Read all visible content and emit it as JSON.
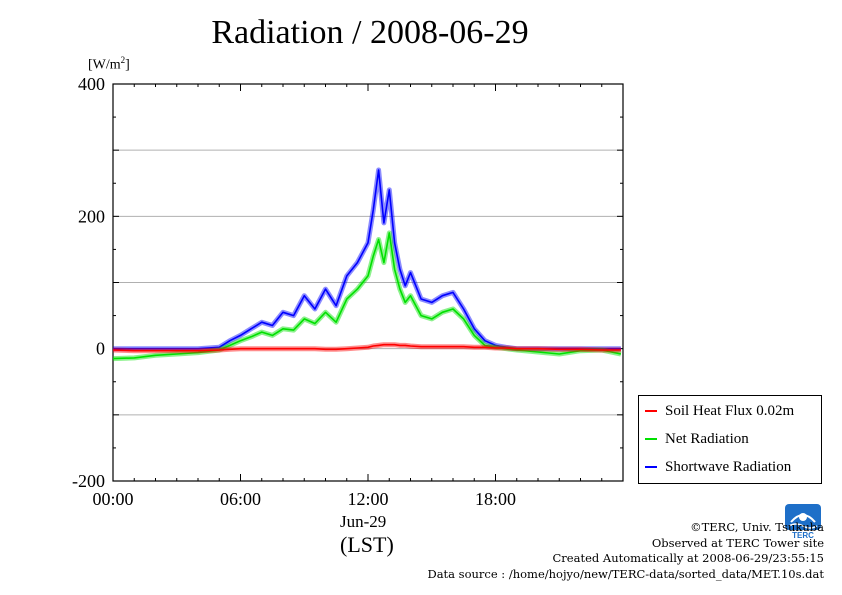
{
  "page": {
    "title": "Radiation / 2008-06-29",
    "unit_label": "[W/m",
    "unit_sup": "2",
    "unit_close": "]",
    "x_date_label": "Jun-29",
    "x_tz_label": "(LST)"
  },
  "legend": {
    "items": [
      {
        "label": "Soil Heat Flux 0.02m",
        "color": "#ff0000"
      },
      {
        "label": "Net Radiation",
        "color": "#00e000"
      },
      {
        "label": "Shortwave Radiation",
        "color": "#0000ff"
      }
    ]
  },
  "credits": {
    "line1": "©TERC, Univ. Tsukuba",
    "line2": "Observed at TERC Tower site",
    "line3": "Created Automatically at 2008-06-29/23:55:15",
    "line4": "Data source : /home/hojyo/new/TERC-data/sorted_data/MET.10s.dat"
  },
  "logo": {
    "text": "TERC",
    "icon": "terc-logo"
  },
  "chart_data": {
    "type": "line",
    "title": "Radiation / 2008-06-29",
    "xlabel": "Jun-29 (LST)",
    "ylabel": "[W/m2]",
    "ylim": [
      -200,
      400
    ],
    "xlim": [
      0,
      24
    ],
    "y_ticks": [
      400,
      200,
      0,
      -200
    ],
    "y_tick_labels": [
      "400",
      "200",
      "0",
      "-200"
    ],
    "x_ticks": [
      0,
      6,
      12,
      18
    ],
    "x_tick_labels": [
      "00:00",
      "06:00",
      "12:00",
      "18:00"
    ],
    "grid": true,
    "legend_position": "right",
    "x": [
      0,
      1,
      2,
      3,
      4,
      5,
      5.5,
      6,
      6.5,
      7,
      7.5,
      8,
      8.5,
      9,
      9.5,
      10,
      10.5,
      11,
      11.5,
      12,
      12.25,
      12.5,
      12.75,
      13,
      13.25,
      13.5,
      13.75,
      14,
      14.5,
      15,
      15.5,
      16,
      16.5,
      17,
      17.5,
      18,
      18.5,
      19,
      20,
      21,
      22,
      23,
      23.9
    ],
    "series": [
      {
        "name": "Soil Heat Flux 0.02m",
        "color": "#ff0000",
        "values": [
          -2,
          -3,
          -3,
          -3,
          -3,
          -2,
          -1,
          0,
          0,
          0,
          0,
          0,
          0,
          0,
          0,
          -1,
          -1,
          0,
          1,
          2,
          4,
          5,
          6,
          6,
          6,
          5,
          5,
          4,
          3,
          3,
          3,
          3,
          3,
          2,
          2,
          1,
          1,
          0,
          0,
          -1,
          -1,
          -2,
          -2
        ]
      },
      {
        "name": "Net Radiation",
        "color": "#00e000",
        "values": [
          -15,
          -14,
          -10,
          -8,
          -6,
          -2,
          5,
          12,
          18,
          25,
          20,
          30,
          28,
          45,
          38,
          55,
          40,
          75,
          90,
          110,
          140,
          165,
          130,
          175,
          120,
          90,
          70,
          80,
          50,
          45,
          55,
          60,
          45,
          20,
          5,
          2,
          0,
          -2,
          -5,
          -8,
          -3,
          -2,
          -8
        ]
      },
      {
        "name": "Shortwave Radiation",
        "color": "#0000ff",
        "values": [
          0,
          0,
          0,
          0,
          0,
          2,
          12,
          20,
          30,
          40,
          35,
          55,
          50,
          80,
          60,
          90,
          65,
          110,
          130,
          160,
          210,
          270,
          190,
          240,
          160,
          120,
          95,
          115,
          75,
          70,
          80,
          85,
          60,
          30,
          12,
          5,
          2,
          0,
          0,
          0,
          0,
          0,
          0
        ]
      }
    ]
  }
}
